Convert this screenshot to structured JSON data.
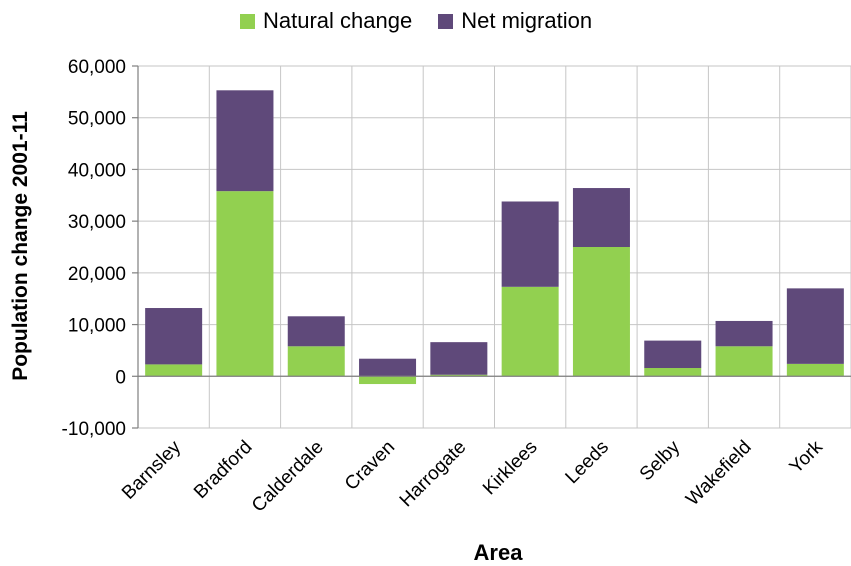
{
  "chart_data": {
    "type": "bar",
    "stacked": true,
    "title": "",
    "xlabel": "Area",
    "ylabel": "Population change 2001-11",
    "ylim": [
      -10000,
      60000
    ],
    "yticks": [
      -10000,
      0,
      10000,
      20000,
      30000,
      40000,
      50000,
      60000
    ],
    "ytick_labels": [
      "-10,000",
      "0",
      "10,000",
      "20,000",
      "30,000",
      "40,000",
      "50,000",
      "60,000"
    ],
    "grid": true,
    "legend_position": "top",
    "categories": [
      "Barnsley",
      "Bradford",
      "Calderdale",
      "Craven",
      "Harrogate",
      "Kirklees",
      "Leeds",
      "Selby",
      "Wakefield",
      "York"
    ],
    "series": [
      {
        "name": "Natural change",
        "color": "#92d050",
        "values": [
          2300,
          35800,
          5800,
          -1500,
          300,
          17300,
          25000,
          1600,
          5800,
          2400
        ]
      },
      {
        "name": "Net migration",
        "color": "#5f497a",
        "values": [
          10900,
          19500,
          5800,
          3400,
          6300,
          16500,
          11400,
          5300,
          4900,
          14600
        ]
      }
    ]
  }
}
